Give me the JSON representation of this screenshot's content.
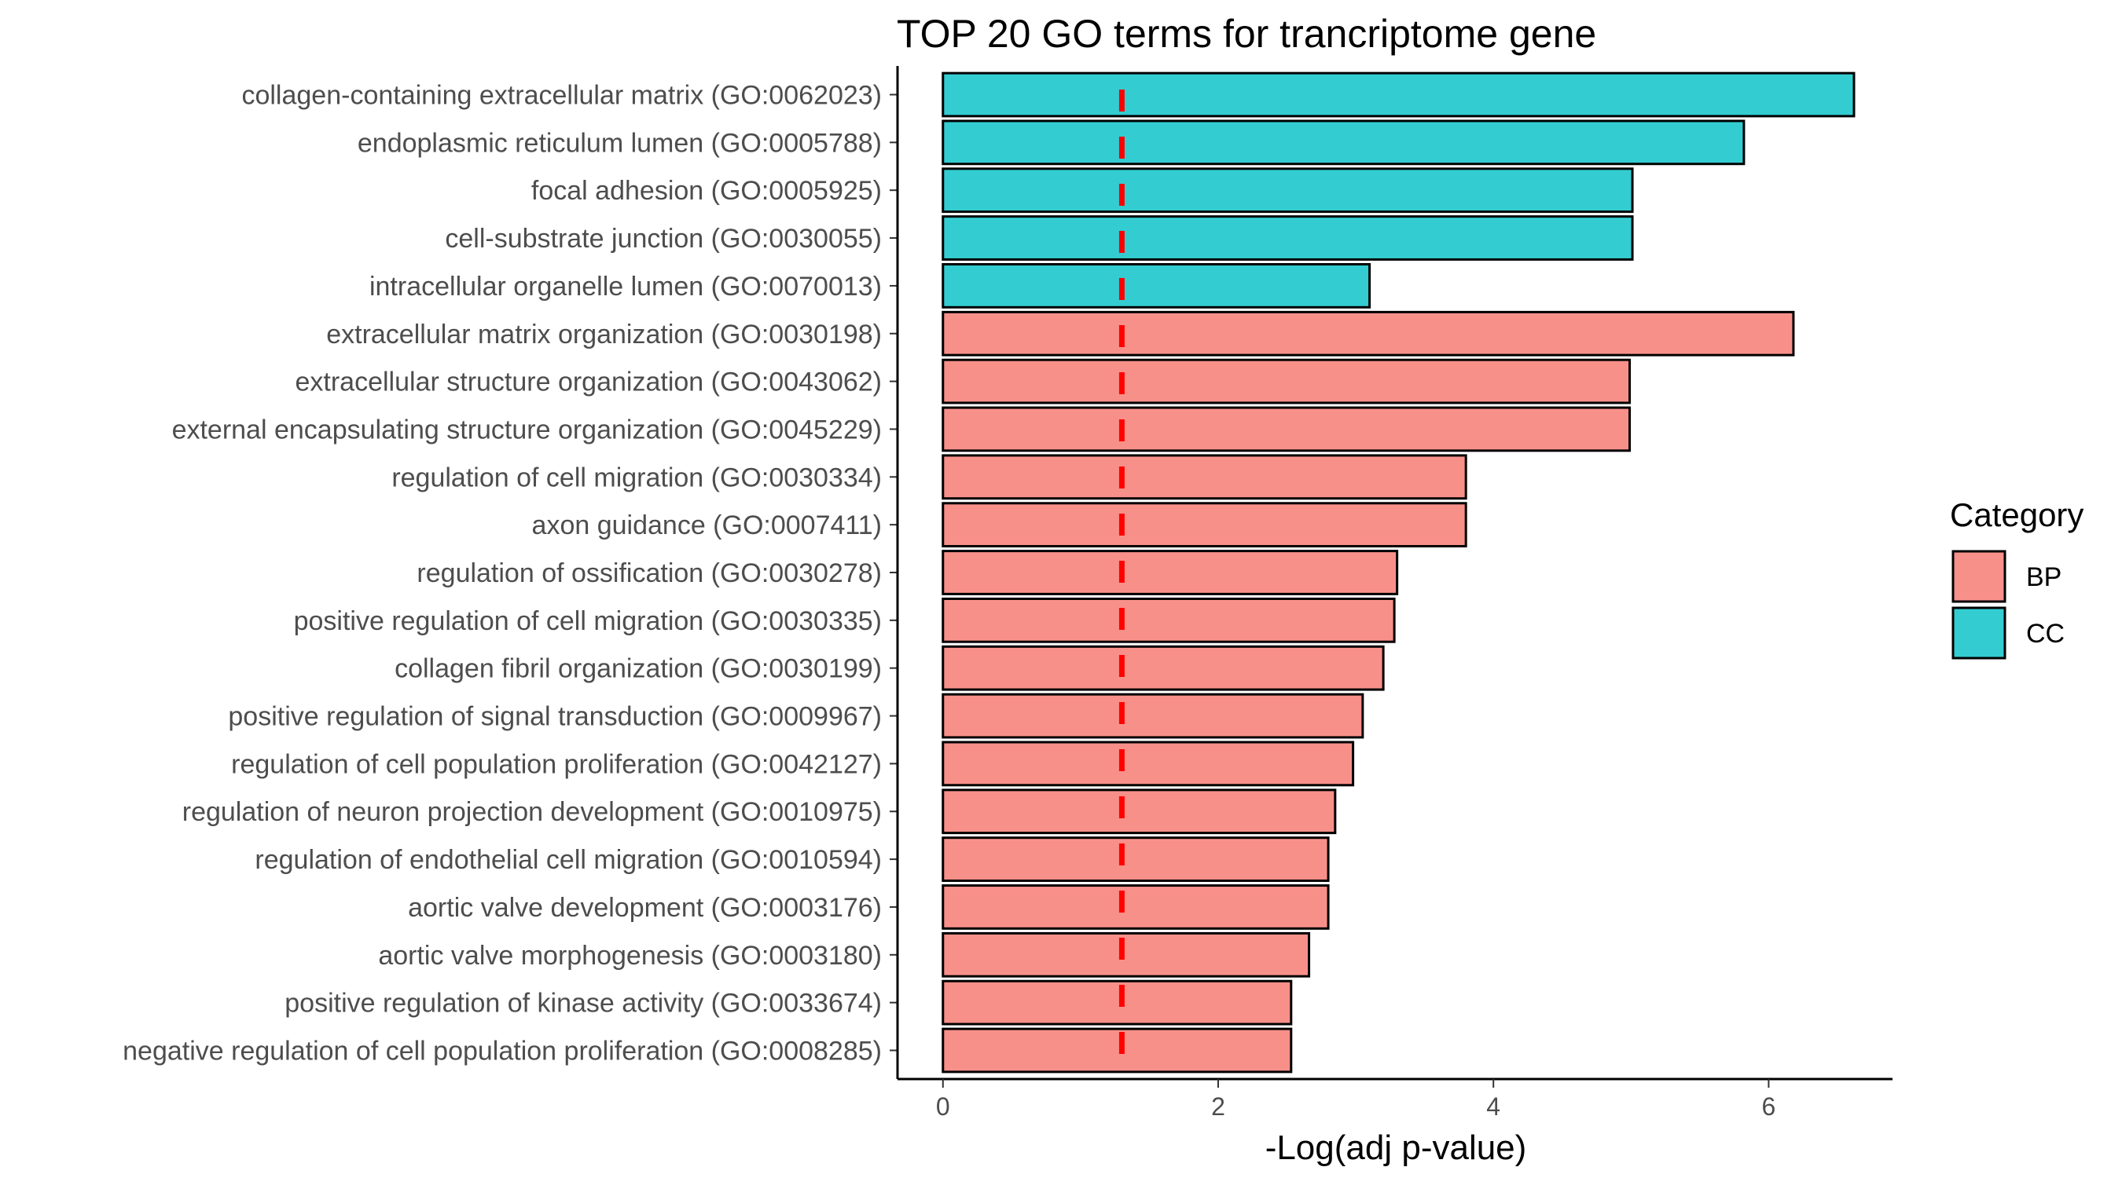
{
  "chart_data": {
    "type": "bar",
    "orientation": "horizontal",
    "title": "TOP 20 GO terms for trancriptome gene",
    "xlabel": "-Log(adj p-value)",
    "ylabel": "",
    "xlim": [
      -0.33,
      6.9
    ],
    "xticks": [
      0,
      2,
      4,
      6
    ],
    "grid": false,
    "threshold": {
      "value": 1.3,
      "color": "#ff0000",
      "style": "dashed"
    },
    "legend": {
      "title": "Category",
      "position": "right",
      "entries": [
        {
          "label": "BP",
          "color": "#f8908a"
        },
        {
          "label": "CC",
          "color": "#33cdd1"
        }
      ]
    },
    "categories": [
      "collagen-containing extracellular matrix (GO:0062023)",
      "endoplasmic reticulum lumen (GO:0005788)",
      "focal adhesion (GO:0005925)",
      "cell-substrate junction (GO:0030055)",
      "intracellular organelle lumen (GO:0070013)",
      "extracellular matrix organization (GO:0030198)",
      "extracellular structure organization (GO:0043062)",
      "external encapsulating structure organization (GO:0045229)",
      "regulation of cell migration (GO:0030334)",
      "axon guidance (GO:0007411)",
      "regulation of ossification (GO:0030278)",
      "positive regulation of cell migration (GO:0030335)",
      "collagen fibril organization (GO:0030199)",
      "positive regulation of signal transduction (GO:0009967)",
      "regulation of cell population proliferation (GO:0042127)",
      "regulation of neuron projection development (GO:0010975)",
      "regulation of endothelial cell migration (GO:0010594)",
      "aortic valve development (GO:0003176)",
      "aortic valve morphogenesis (GO:0003180)",
      "positive regulation of kinase activity (GO:0033674)",
      "negative regulation of cell population proliferation (GO:0008285)"
    ],
    "values": [
      6.62,
      5.82,
      5.01,
      5.01,
      3.1,
      6.18,
      4.99,
      4.99,
      3.8,
      3.8,
      3.3,
      3.28,
      3.2,
      3.05,
      2.98,
      2.85,
      2.8,
      2.8,
      2.66,
      2.53,
      2.53
    ],
    "groups": [
      "CC",
      "CC",
      "CC",
      "CC",
      "CC",
      "BP",
      "BP",
      "BP",
      "BP",
      "BP",
      "BP",
      "BP",
      "BP",
      "BP",
      "BP",
      "BP",
      "BP",
      "BP",
      "BP",
      "BP",
      "BP"
    ]
  }
}
